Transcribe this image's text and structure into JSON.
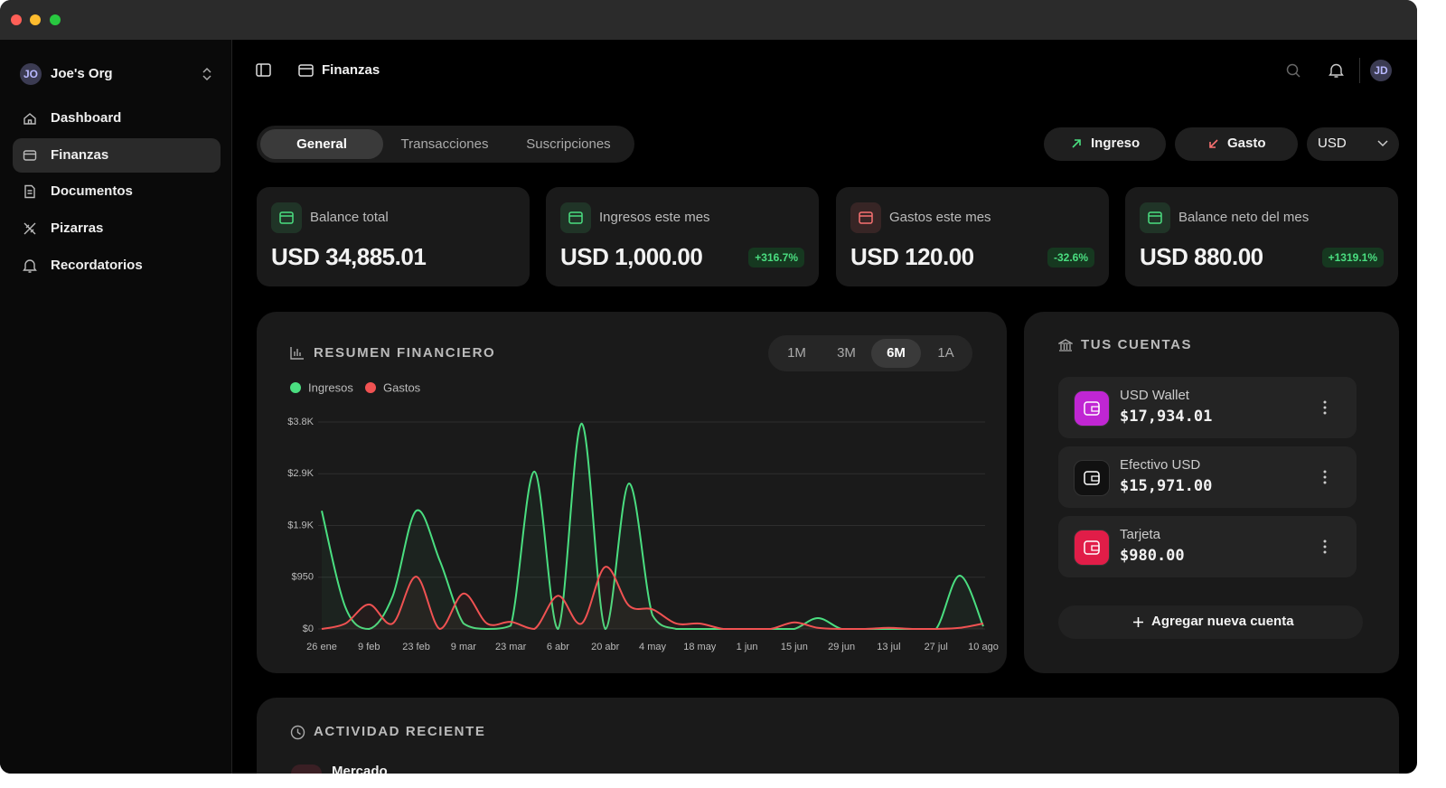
{
  "sidebar": {
    "org_initials": "JO",
    "org_name": "Joe's Org",
    "nav": [
      "Dashboard",
      "Finanzas",
      "Documentos",
      "Pizarras",
      "Recordatorios"
    ],
    "active": 1
  },
  "header": {
    "title": "Finanzas",
    "avatar": "JD"
  },
  "tabs": {
    "items": [
      "General",
      "Transacciones",
      "Suscripciones"
    ],
    "active": 0
  },
  "actions": {
    "income": "Ingreso",
    "expense": "Gasto",
    "currency": "USD"
  },
  "stats": [
    {
      "label": "Balance total",
      "value": "USD 34,885.01",
      "icon_color": "#4ade80"
    },
    {
      "label": "Ingresos este mes",
      "value": "USD 1,000.00",
      "change": "+316.7%",
      "icon_color": "#4ade80"
    },
    {
      "label": "Gastos este mes",
      "value": "USD 120.00",
      "change": "-32.6%",
      "icon_color": "#f87171"
    },
    {
      "label": "Balance neto del mes",
      "value": "USD 880.00",
      "change": "+1319.1%",
      "icon_color": "#4ade80"
    }
  ],
  "chart_data": {
    "type": "line",
    "title": "RESUMEN FINANCIERO",
    "ranges": [
      "1M",
      "3M",
      "6M",
      "1A"
    ],
    "active_range": 2,
    "categories": [
      "26 ene",
      null,
      "9 feb",
      null,
      "23 feb",
      null,
      "9 mar",
      null,
      "23 mar",
      null,
      "6 abr",
      null,
      "20 abr",
      null,
      "4 may",
      null,
      "18 may",
      null,
      "1 jun",
      null,
      "15 jun",
      null,
      "29 jun",
      null,
      "13 jul",
      null,
      "27 jul",
      null,
      "10 ago"
    ],
    "series": [
      {
        "name": "Ingresos",
        "color": "#4ade80",
        "values": [
          2170,
          400,
          0,
          600,
          2170,
          1250,
          100,
          0,
          60,
          2890,
          0,
          3770,
          0,
          2670,
          250,
          0,
          0,
          0,
          0,
          0,
          0,
          200,
          0,
          0,
          0,
          0,
          0,
          980,
          50
        ]
      },
      {
        "name": "Gastos",
        "color": "#f05252",
        "values": [
          0,
          100,
          450,
          100,
          960,
          0,
          650,
          100,
          130,
          0,
          610,
          100,
          1140,
          430,
          360,
          100,
          100,
          0,
          0,
          0,
          120,
          20,
          0,
          0,
          20,
          0,
          0,
          20,
          100
        ]
      }
    ],
    "ylim": [
      0,
      3800
    ],
    "yticks": [
      {
        "value": 0,
        "label": "$0"
      },
      {
        "value": 950,
        "label": "$950"
      },
      {
        "value": 1900,
        "label": "$1.9K"
      },
      {
        "value": 2850,
        "label": "$2.9K"
      },
      {
        "value": 3800,
        "label": "$3.8K"
      }
    ],
    "grid": true
  },
  "accounts": {
    "title": "TUS CUENTAS",
    "items": [
      {
        "name": "USD Wallet",
        "balance": "$17,934.01",
        "color": "#c026d3"
      },
      {
        "name": "Efectivo USD",
        "balance": "$15,971.00",
        "color": "#111111"
      },
      {
        "name": "Tarjeta",
        "balance": "$980.00",
        "color": "#e11d48"
      }
    ],
    "add": "Agregar nueva cuenta"
  },
  "activity": {
    "title": "ACTIVIDAD RECIENTE",
    "items": [
      "Mercado"
    ]
  }
}
